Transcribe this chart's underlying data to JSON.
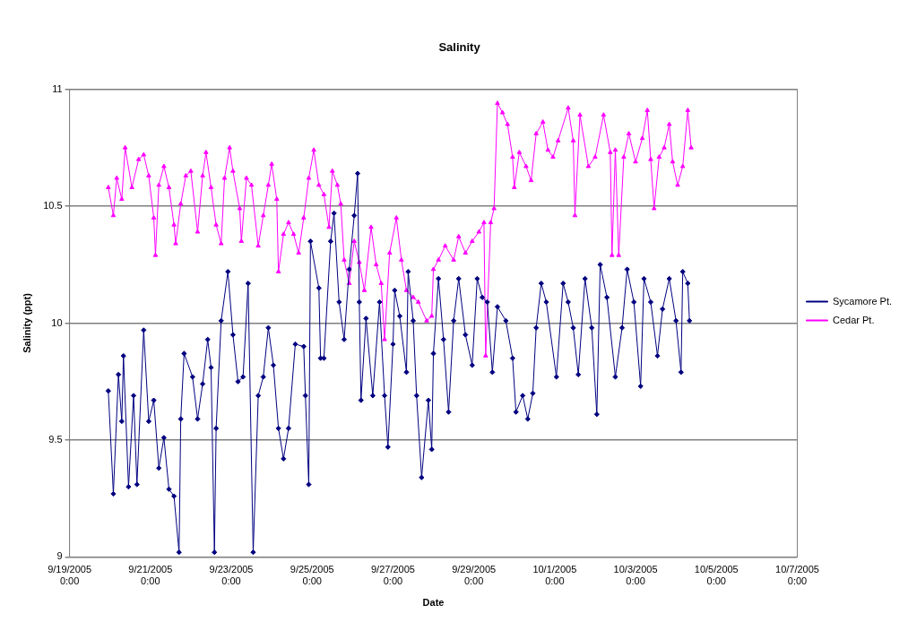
{
  "chart_data": {
    "type": "line",
    "title": "Salinity",
    "xlabel": "Date",
    "ylabel": "Salinity (ppt)",
    "xlim": [
      "2005-09-19T00:00",
      "2005-10-07T00:00"
    ],
    "xticks": [
      {
        "value": "2005-09-19T00:00",
        "label": "9/19/2005\n0:00"
      },
      {
        "value": "2005-09-21T00:00",
        "label": "9/21/2005\n0:00"
      },
      {
        "value": "2005-09-23T00:00",
        "label": "9/23/2005\n0:00"
      },
      {
        "value": "2005-09-25T00:00",
        "label": "9/25/2005\n0:00"
      },
      {
        "value": "2005-09-27T00:00",
        "label": "9/27/2005\n0:00"
      },
      {
        "value": "2005-09-29T00:00",
        "label": "9/29/2005\n0:00"
      },
      {
        "value": "2005-10-01T00:00",
        "label": "10/1/2005\n0:00"
      },
      {
        "value": "2005-10-03T00:00",
        "label": "10/3/2005\n0:00"
      },
      {
        "value": "2005-10-05T00:00",
        "label": "10/5/2005\n0:00"
      },
      {
        "value": "2005-10-07T00:00",
        "label": "10/7/2005\n0:00"
      }
    ],
    "ylim": [
      9,
      11
    ],
    "yticks": [
      9,
      9.5,
      10,
      10.5,
      11
    ],
    "grid": "y",
    "legend": "right",
    "line_style": "solid",
    "series": [
      {
        "name": "Sycamore Pt.",
        "color": "#000080",
        "marker": "diamond",
        "x": [
          "2005-09-19T23:00",
          "2005-09-20T02:00",
          "2005-09-20T05:00",
          "2005-09-20T07:00",
          "2005-09-20T08:00",
          "2005-09-20T11:00",
          "2005-09-20T14:00",
          "2005-09-20T16:00",
          "2005-09-20T20:00",
          "2005-09-20T23:00",
          "2005-09-21T02:00",
          "2005-09-21T05:00",
          "2005-09-21T08:00",
          "2005-09-21T11:00",
          "2005-09-21T14:00",
          "2005-09-21T17:00",
          "2005-09-21T18:00",
          "2005-09-21T20:00",
          "2005-09-22T01:00",
          "2005-09-22T04:00",
          "2005-09-22T07:00",
          "2005-09-22T10:00",
          "2005-09-22T12:00",
          "2005-09-22T14:00",
          "2005-09-22T15:00",
          "2005-09-22T18:00",
          "2005-09-22T22:00",
          "2005-09-23T01:00",
          "2005-09-23T04:00",
          "2005-09-23T07:00",
          "2005-09-23T10:00",
          "2005-09-23T13:00",
          "2005-09-23T16:00",
          "2005-09-23T19:00",
          "2005-09-23T22:00",
          "2005-09-24T01:00",
          "2005-09-24T04:00",
          "2005-09-24T07:00",
          "2005-09-24T10:00",
          "2005-09-24T14:00",
          "2005-09-24T19:00",
          "2005-09-24T20:00",
          "2005-09-24T22:00",
          "2005-09-24T23:00",
          "2005-09-25T04:00",
          "2005-09-25T05:00",
          "2005-09-25T07:00",
          "2005-09-25T11:00",
          "2005-09-25T13:00",
          "2005-09-25T16:00",
          "2005-09-25T19:00",
          "2005-09-25T22:00",
          "2005-09-26T01:00",
          "2005-09-26T03:00",
          "2005-09-26T04:00",
          "2005-09-26T05:00",
          "2005-09-26T08:00",
          "2005-09-26T12:00",
          "2005-09-26T16:00",
          "2005-09-26T19:00",
          "2005-09-26T21:00",
          "2005-09-27T00:00",
          "2005-09-27T01:00",
          "2005-09-27T04:00",
          "2005-09-27T08:00",
          "2005-09-27T09:00",
          "2005-09-27T12:00",
          "2005-09-27T14:00",
          "2005-09-27T17:00",
          "2005-09-27T21:00",
          "2005-09-27T23:00",
          "2005-09-28T00:00",
          "2005-09-28T03:00",
          "2005-09-28T06:00",
          "2005-09-28T09:00",
          "2005-09-28T12:00",
          "2005-09-28T15:00",
          "2005-09-28T19:00",
          "2005-09-28T23:00",
          "2005-09-29T02:00",
          "2005-09-29T05:00",
          "2005-09-29T08:00",
          "2005-09-29T11:00",
          "2005-09-29T14:00",
          "2005-09-29T19:00",
          "2005-09-29T23:00",
          "2005-09-30T01:00",
          "2005-09-30T05:00",
          "2005-09-30T08:00",
          "2005-09-30T11:00",
          "2005-09-30T13:00",
          "2005-09-30T16:00",
          "2005-09-30T19:00",
          "2005-10-01T01:00",
          "2005-10-01T05:00",
          "2005-10-01T08:00",
          "2005-10-01T11:00",
          "2005-10-01T14:00",
          "2005-10-01T18:00",
          "2005-10-01T22:00",
          "2005-10-02T01:00",
          "2005-10-02T03:00",
          "2005-10-02T07:00",
          "2005-10-02T12:00",
          "2005-10-02T16:00",
          "2005-10-02T19:00",
          "2005-10-02T23:00",
          "2005-10-03T03:00",
          "2005-10-03T05:00",
          "2005-10-03T09:00",
          "2005-10-03T13:00",
          "2005-10-03T16:00",
          "2005-10-03T20:00",
          "2005-10-04T00:00",
          "2005-10-04T03:00",
          "2005-10-04T04:00",
          "2005-10-04T07:00",
          "2005-10-04T08:00"
        ],
        "values": [
          9.71,
          9.27,
          9.78,
          9.58,
          9.86,
          9.3,
          9.69,
          9.31,
          9.97,
          9.58,
          9.67,
          9.38,
          9.51,
          9.29,
          9.26,
          9.02,
          9.59,
          9.87,
          9.77,
          9.59,
          9.74,
          9.93,
          9.81,
          9.02,
          9.55,
          10.01,
          10.22,
          9.95,
          9.75,
          9.77,
          10.17,
          9.02,
          9.69,
          9.77,
          9.98,
          9.82,
          9.55,
          9.42,
          9.55,
          9.91,
          9.9,
          9.69,
          9.31,
          10.35,
          10.15,
          9.85,
          9.85,
          10.35,
          10.47,
          10.09,
          9.93,
          10.23,
          10.46,
          10.64,
          10.09,
          9.67,
          10.02,
          9.69,
          10.09,
          9.69,
          9.47,
          9.91,
          10.14,
          10.03,
          9.79,
          10.22,
          10.01,
          9.69,
          9.34,
          9.67,
          9.46,
          9.87,
          10.19,
          9.93,
          9.62,
          10.01,
          10.19,
          9.95,
          9.82,
          10.19,
          10.11,
          10.09,
          9.79,
          10.07,
          10.01,
          9.85,
          9.62,
          9.69,
          9.59,
          9.7,
          9.98,
          10.17,
          10.09,
          9.77,
          10.17,
          10.09,
          9.98,
          9.78,
          10.19,
          9.98,
          9.61,
          10.25,
          10.11,
          9.77,
          9.98,
          10.23,
          10.09,
          9.73,
          10.19,
          10.09,
          9.86,
          10.06,
          10.19,
          10.01,
          9.79,
          10.22,
          10.17,
          10.01
        ]
      },
      {
        "name": "Cedar Pt.",
        "color": "#ff00ff",
        "marker": "triangle",
        "x": [
          "2005-09-19T23:00",
          "2005-09-20T02:00",
          "2005-09-20T04:00",
          "2005-09-20T07:00",
          "2005-09-20T09:00",
          "2005-09-20T13:00",
          "2005-09-20T17:00",
          "2005-09-20T20:00",
          "2005-09-20T23:00",
          "2005-09-21T02:00",
          "2005-09-21T03:00",
          "2005-09-21T05:00",
          "2005-09-21T08:00",
          "2005-09-21T11:00",
          "2005-09-21T14:00",
          "2005-09-21T15:00",
          "2005-09-21T18:00",
          "2005-09-21T21:00",
          "2005-09-22T00:00",
          "2005-09-22T04:00",
          "2005-09-22T07:00",
          "2005-09-22T09:00",
          "2005-09-22T12:00",
          "2005-09-22T15:00",
          "2005-09-22T18:00",
          "2005-09-22T20:00",
          "2005-09-22T23:00",
          "2005-09-23T01:00",
          "2005-09-23T05:00",
          "2005-09-23T06:00",
          "2005-09-23T09:00",
          "2005-09-23T12:00",
          "2005-09-23T16:00",
          "2005-09-23T19:00",
          "2005-09-23T22:00",
          "2005-09-24T00:00",
          "2005-09-24T03:00",
          "2005-09-24T04:00",
          "2005-09-24T07:00",
          "2005-09-24T10:00",
          "2005-09-24T13:00",
          "2005-09-24T16:00",
          "2005-09-24T19:00",
          "2005-09-24T22:00",
          "2005-09-25T01:00",
          "2005-09-25T04:00",
          "2005-09-25T07:00",
          "2005-09-25T10:00",
          "2005-09-25T12:00",
          "2005-09-25T15:00",
          "2005-09-25T17:00",
          "2005-09-25T19:00",
          "2005-09-25T22:00",
          "2005-09-26T01:00",
          "2005-09-26T04:00",
          "2005-09-26T07:00",
          "2005-09-26T11:00",
          "2005-09-26T14:00",
          "2005-09-26T17:00",
          "2005-09-26T19:00",
          "2005-09-26T22:00",
          "2005-09-27T02:00",
          "2005-09-27T05:00",
          "2005-09-27T08:00",
          "2005-09-27T12:00",
          "2005-09-27T15:00",
          "2005-09-27T20:00",
          "2005-09-27T23:00",
          "2005-09-28T00:00",
          "2005-09-28T03:00",
          "2005-09-28T07:00",
          "2005-09-28T12:00",
          "2005-09-28T15:00",
          "2005-09-28T19:00",
          "2005-09-28T23:00",
          "2005-09-29T03:00",
          "2005-09-29T06:00",
          "2005-09-29T07:00",
          "2005-09-29T10:00",
          "2005-09-29T12:00",
          "2005-09-29T14:00",
          "2005-09-29T17:00",
          "2005-09-29T20:00",
          "2005-09-29T23:00",
          "2005-09-30T00:00",
          "2005-09-30T03:00",
          "2005-09-30T07:00",
          "2005-09-30T10:00",
          "2005-09-30T13:00",
          "2005-09-30T17:00",
          "2005-09-30T20:00",
          "2005-09-30T23:00",
          "2005-10-01T02:00",
          "2005-10-01T08:00",
          "2005-10-01T11:00",
          "2005-10-01T12:00",
          "2005-10-01T15:00",
          "2005-10-01T20:00",
          "2005-10-02T00:00",
          "2005-10-02T05:00",
          "2005-10-02T09:00",
          "2005-10-02T10:00",
          "2005-10-02T12:00",
          "2005-10-02T14:00",
          "2005-10-02T17:00",
          "2005-10-02T20:00",
          "2005-10-03T00:00",
          "2005-10-03T04:00",
          "2005-10-03T07:00",
          "2005-10-03T09:00",
          "2005-10-03T11:00",
          "2005-10-03T14:00",
          "2005-10-03T17:00",
          "2005-10-03T20:00",
          "2005-10-03T22:00",
          "2005-10-04T01:00",
          "2005-10-04T04:00",
          "2005-10-04T07:00",
          "2005-10-04T09:00"
        ],
        "values": [
          10.58,
          10.46,
          10.62,
          10.53,
          10.75,
          10.58,
          10.7,
          10.72,
          10.63,
          10.45,
          10.29,
          10.59,
          10.67,
          10.58,
          10.42,
          10.34,
          10.51,
          10.63,
          10.65,
          10.39,
          10.63,
          10.73,
          10.58,
          10.42,
          10.34,
          10.62,
          10.75,
          10.65,
          10.49,
          10.35,
          10.62,
          10.59,
          10.33,
          10.46,
          10.59,
          10.68,
          10.53,
          10.22,
          10.38,
          10.43,
          10.38,
          10.3,
          10.45,
          10.62,
          10.74,
          10.59,
          10.55,
          10.41,
          10.65,
          10.59,
          10.51,
          10.27,
          10.17,
          10.35,
          10.26,
          10.14,
          10.41,
          10.25,
          10.17,
          9.93,
          10.3,
          10.45,
          10.27,
          10.14,
          10.11,
          10.09,
          10.01,
          10.03,
          10.23,
          10.27,
          10.33,
          10.27,
          10.37,
          10.3,
          10.35,
          10.39,
          10.43,
          9.86,
          10.43,
          10.49,
          10.94,
          10.9,
          10.85,
          10.71,
          10.58,
          10.73,
          10.67,
          10.61,
          10.81,
          10.86,
          10.74,
          10.71,
          10.78,
          10.92,
          10.78,
          10.46,
          10.89,
          10.67,
          10.71,
          10.89,
          10.73,
          10.29,
          10.74,
          10.29,
          10.71,
          10.81,
          10.69,
          10.79,
          10.91,
          10.7,
          10.49,
          10.71,
          10.75,
          10.85,
          10.69,
          10.59,
          10.67,
          10.91,
          10.75
        ]
      }
    ]
  }
}
